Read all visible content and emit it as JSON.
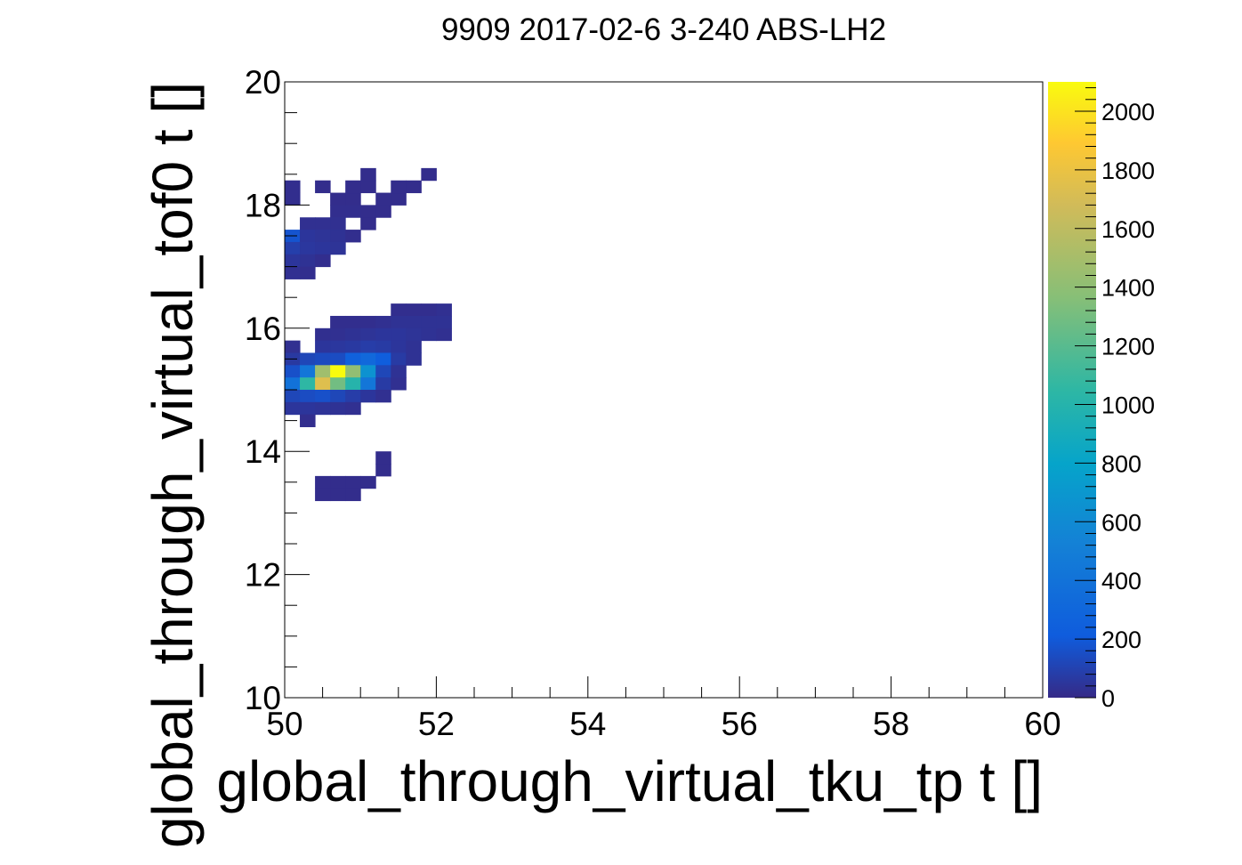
{
  "chart_data": {
    "type": "heatmap",
    "title": "9909 2017-02-6 3-240 ABS-LH2",
    "xlabel": "global_through_virtual_tku_tp t []",
    "ylabel": "global_through_virtual_tof0 t []",
    "xlim": [
      50,
      60
    ],
    "ylim": [
      10,
      20
    ],
    "x_ticks": [
      "50",
      "52",
      "54",
      "56",
      "58",
      "60"
    ],
    "y_ticks": [
      "10",
      "12",
      "14",
      "16",
      "18",
      "20"
    ],
    "z_range": [
      0,
      2100
    ],
    "z_ticks": [
      "0",
      "200",
      "400",
      "600",
      "800",
      "1000",
      "1200",
      "1400",
      "1600",
      "1800",
      "2000"
    ],
    "bin_width_x": 0.2,
    "bin_width_y": 0.2,
    "colormap": [
      "#352a87",
      "#0f5cdd",
      "#1481d6",
      "#06a4ca",
      "#2eb7a4",
      "#87bf77",
      "#d1bb59",
      "#fec832",
      "#f9fb0e"
    ],
    "bins": [
      [
        50.0,
        18.2,
        20
      ],
      [
        50.0,
        18.0,
        20
      ],
      [
        50.4,
        18.2,
        15
      ],
      [
        50.6,
        18.0,
        15
      ],
      [
        50.8,
        18.0,
        15
      ],
      [
        50.8,
        18.2,
        15
      ],
      [
        51.0,
        18.2,
        15
      ],
      [
        51.0,
        18.4,
        15
      ],
      [
        51.2,
        18.0,
        15
      ],
      [
        51.2,
        17.8,
        15
      ],
      [
        51.4,
        18.0,
        15
      ],
      [
        51.4,
        18.2,
        15
      ],
      [
        51.6,
        18.2,
        15
      ],
      [
        51.8,
        18.4,
        15
      ],
      [
        50.6,
        17.8,
        20
      ],
      [
        50.8,
        17.8,
        20
      ],
      [
        51.0,
        17.6,
        15
      ],
      [
        51.0,
        17.8,
        15
      ],
      [
        50.2,
        17.6,
        30
      ],
      [
        50.4,
        17.6,
        30
      ],
      [
        50.6,
        17.6,
        30
      ],
      [
        50.0,
        17.4,
        220
      ],
      [
        50.2,
        17.4,
        60
      ],
      [
        50.4,
        17.4,
        50
      ],
      [
        50.6,
        17.4,
        40
      ],
      [
        50.8,
        17.4,
        20
      ],
      [
        50.0,
        17.2,
        110
      ],
      [
        50.2,
        17.2,
        70
      ],
      [
        50.4,
        17.2,
        60
      ],
      [
        50.6,
        17.2,
        50
      ],
      [
        50.0,
        17.0,
        60
      ],
      [
        50.2,
        17.0,
        40
      ],
      [
        50.4,
        17.0,
        20
      ],
      [
        50.0,
        16.8,
        30
      ],
      [
        50.2,
        16.8,
        20
      ],
      [
        51.4,
        16.2,
        20
      ],
      [
        51.6,
        16.2,
        20
      ],
      [
        51.8,
        16.2,
        20
      ],
      [
        52.0,
        16.2,
        30
      ],
      [
        50.6,
        16.0,
        20
      ],
      [
        50.8,
        16.0,
        20
      ],
      [
        51.0,
        16.0,
        20
      ],
      [
        51.2,
        16.0,
        30
      ],
      [
        51.4,
        16.0,
        40
      ],
      [
        51.6,
        16.0,
        40
      ],
      [
        51.8,
        16.0,
        40
      ],
      [
        52.0,
        16.0,
        40
      ],
      [
        50.4,
        15.8,
        25
      ],
      [
        50.6,
        15.8,
        30
      ],
      [
        50.8,
        15.8,
        40
      ],
      [
        51.0,
        15.8,
        50
      ],
      [
        51.2,
        15.8,
        60
      ],
      [
        51.4,
        15.8,
        60
      ],
      [
        51.6,
        15.8,
        50
      ],
      [
        51.8,
        15.8,
        40
      ],
      [
        52.0,
        15.8,
        30
      ],
      [
        50.0,
        15.6,
        30
      ],
      [
        50.4,
        15.6,
        60
      ],
      [
        50.6,
        15.6,
        70
      ],
      [
        50.8,
        15.6,
        80
      ],
      [
        51.0,
        15.6,
        100
      ],
      [
        51.2,
        15.6,
        90
      ],
      [
        51.4,
        15.6,
        60
      ],
      [
        51.6,
        15.6,
        40
      ],
      [
        50.0,
        15.4,
        80
      ],
      [
        50.2,
        15.4,
        150
      ],
      [
        50.4,
        15.4,
        170
      ],
      [
        50.6,
        15.4,
        180
      ],
      [
        50.8,
        15.4,
        300
      ],
      [
        51.0,
        15.4,
        350
      ],
      [
        51.2,
        15.4,
        280
      ],
      [
        51.4,
        15.4,
        90
      ],
      [
        51.6,
        15.4,
        40
      ],
      [
        50.0,
        15.2,
        200
      ],
      [
        50.2,
        15.2,
        450
      ],
      [
        50.4,
        15.2,
        1400
      ],
      [
        50.6,
        15.2,
        2100
      ],
      [
        50.8,
        15.2,
        1350
      ],
      [
        51.0,
        15.2,
        650
      ],
      [
        51.2,
        15.2,
        150
      ],
      [
        51.4,
        15.2,
        40
      ],
      [
        50.0,
        15.0,
        420
      ],
      [
        50.2,
        15.0,
        1050
      ],
      [
        50.4,
        15.0,
        1650
      ],
      [
        50.6,
        15.0,
        1250
      ],
      [
        50.8,
        15.0,
        1000
      ],
      [
        51.0,
        15.0,
        450
      ],
      [
        51.2,
        15.0,
        90
      ],
      [
        51.4,
        15.0,
        30
      ],
      [
        50.0,
        14.8,
        150
      ],
      [
        50.2,
        14.8,
        180
      ],
      [
        50.4,
        14.8,
        200
      ],
      [
        50.6,
        14.8,
        150
      ],
      [
        50.8,
        14.8,
        100
      ],
      [
        51.0,
        14.8,
        60
      ],
      [
        51.2,
        14.8,
        30
      ],
      [
        50.0,
        14.6,
        60
      ],
      [
        50.2,
        14.6,
        60
      ],
      [
        50.4,
        14.6,
        50
      ],
      [
        50.6,
        14.6,
        40
      ],
      [
        50.8,
        14.6,
        30
      ],
      [
        50.2,
        14.4,
        20
      ],
      [
        51.2,
        13.8,
        15
      ],
      [
        51.2,
        13.6,
        15
      ],
      [
        50.4,
        13.4,
        15
      ],
      [
        50.6,
        13.4,
        15
      ],
      [
        50.8,
        13.4,
        15
      ],
      [
        51.0,
        13.4,
        15
      ],
      [
        50.4,
        13.2,
        15
      ],
      [
        50.6,
        13.2,
        15
      ],
      [
        50.8,
        13.2,
        15
      ]
    ]
  }
}
